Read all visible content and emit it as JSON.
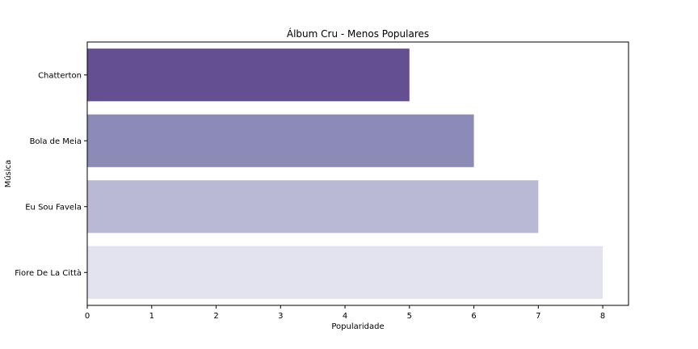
{
  "chart_data": {
    "type": "bar",
    "orientation": "horizontal",
    "title": "Álbum Cru - Menos Populares",
    "xlabel": "Popularidade",
    "ylabel": "Música",
    "categories": [
      "Chatterton",
      "Bola de Meia",
      "Eu Sou Favela",
      "Fiore De La Città"
    ],
    "values": [
      5,
      6,
      7,
      8
    ],
    "xlim": [
      0,
      8.4
    ],
    "xticks": [
      0,
      1,
      2,
      3,
      4,
      5,
      6,
      7,
      8
    ],
    "colors": [
      "#644f92",
      "#8c8bb8",
      "#b9b9d6",
      "#e3e2ef"
    ],
    "grid": false,
    "legend": "none"
  }
}
